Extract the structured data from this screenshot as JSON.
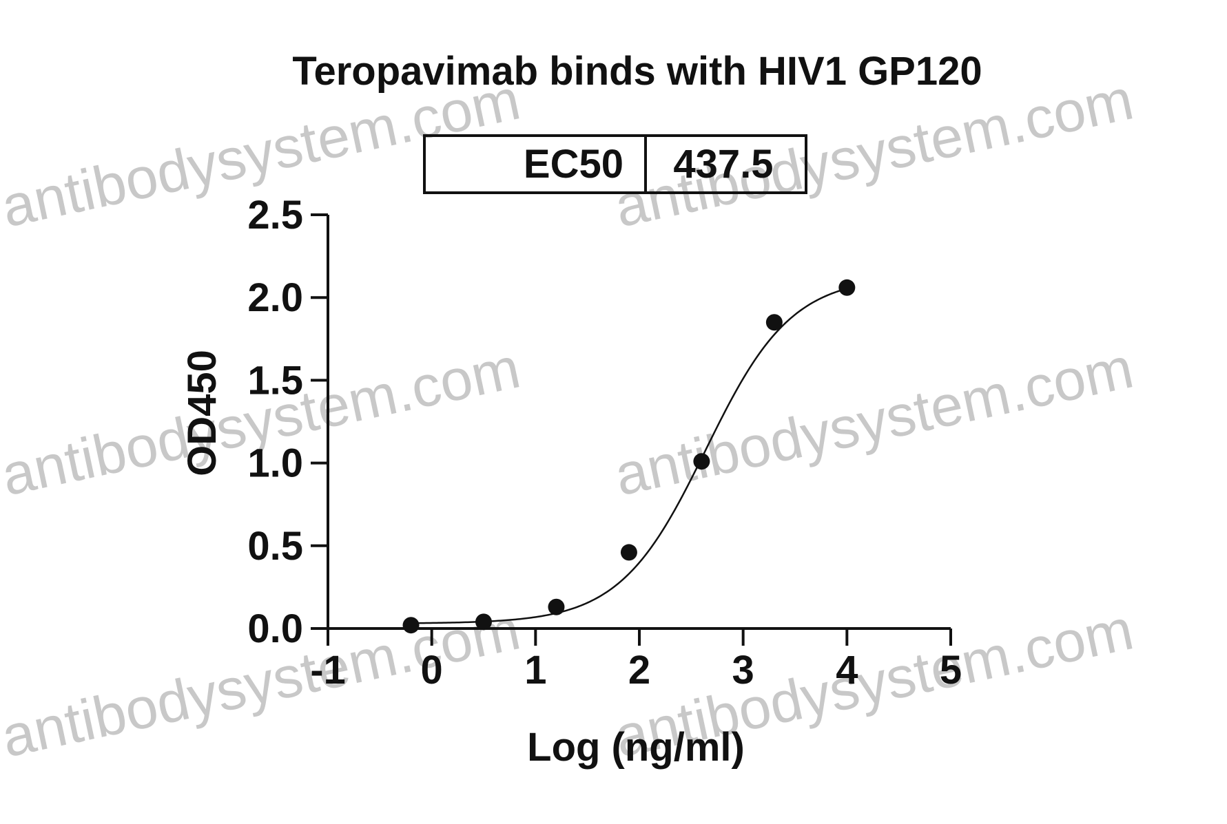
{
  "watermark": "antibodysystem.com",
  "chart_data": {
    "type": "scatter",
    "title": "Teropavimab binds with HIV1 GP120",
    "xlabel": "Log (ng/ml)",
    "ylabel": "OD450",
    "xlim": [
      -1,
      5
    ],
    "ylim": [
      0,
      2.5
    ],
    "xticks": [
      "-1",
      "0",
      "1",
      "2",
      "3",
      "4",
      "5"
    ],
    "yticks": [
      "0.0",
      "0.5",
      "1.0",
      "1.5",
      "2.0",
      "2.5"
    ],
    "grid": false,
    "inset_table": {
      "label": "EC50",
      "value": "437.5"
    },
    "series": [
      {
        "points": [
          {
            "x": -0.2,
            "y": 0.02
          },
          {
            "x": 0.5,
            "y": 0.04
          },
          {
            "x": 1.2,
            "y": 0.13
          },
          {
            "x": 1.9,
            "y": 0.46
          },
          {
            "x": 2.6,
            "y": 1.01
          },
          {
            "x": 3.3,
            "y": 1.85
          },
          {
            "x": 4.0,
            "y": 2.06
          }
        ],
        "fit": {
          "model": "4PL",
          "bottom": 0.03,
          "top": 2.13,
          "log_ec50": 2.64,
          "hill_slope": 1.05
        }
      }
    ]
  }
}
